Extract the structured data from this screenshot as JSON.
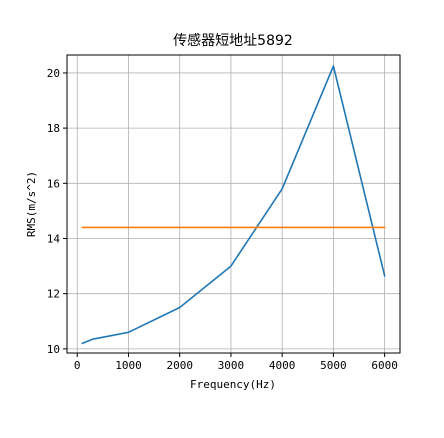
{
  "chart_data": {
    "type": "line",
    "title": "传感器短地址5892",
    "xlabel": "Frequency(Hz)",
    "ylabel": "RMS(m/s^2)",
    "xlim": [
      -200,
      6300
    ],
    "ylim": [
      9.85,
      20.65
    ],
    "x_ticks": [
      0,
      1000,
      2000,
      3000,
      4000,
      5000,
      6000
    ],
    "y_ticks": [
      10,
      12,
      14,
      16,
      18,
      20
    ],
    "grid": true,
    "series": [
      {
        "color": "#1f77b4",
        "x": [
          100,
          300,
          1000,
          2000,
          3000,
          4000,
          5000,
          6000
        ],
        "y": [
          10.2,
          10.35,
          10.6,
          11.5,
          13.0,
          15.8,
          20.25,
          12.65
        ]
      },
      {
        "color": "#ff7f0e",
        "x": [
          100,
          6000
        ],
        "y": [
          14.4,
          14.4
        ]
      }
    ]
  }
}
